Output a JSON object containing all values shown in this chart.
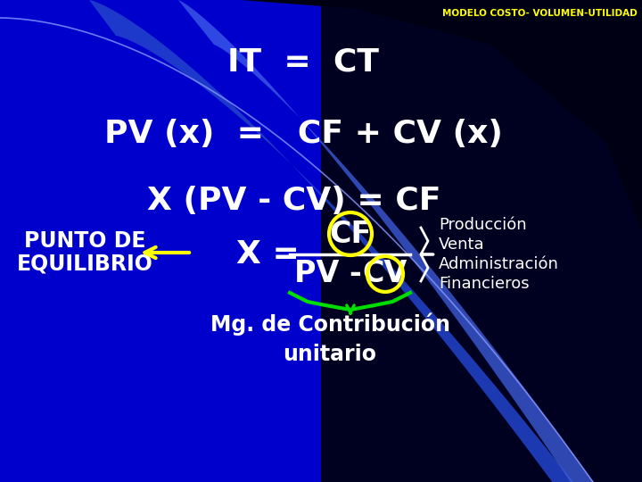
{
  "title": "MODELO COSTO- VOLUMEN-UTILIDAD",
  "title_color": "#FFFF00",
  "title_fontsize": 7.5,
  "line1": "IT  =  CT",
  "line2": "PV (x)  =   CF + CV (x)",
  "line3": "X (PV - CV) = CF",
  "formula_x_eq": "X =",
  "cf_text": "CF",
  "pv_dash": "PV -",
  "cv_text": "CV",
  "punto_de": "PUNTO DE",
  "equilibrio": "EQUILIBRIO",
  "mg_text": "Mg. de Contribución\nunitario",
  "right_brace_items": [
    "Producción",
    "Venta",
    "Administración",
    "Financieros"
  ],
  "white": "#FFFFFF",
  "yellow": "#FFFF00",
  "green": "#00DD00",
  "bg_blue": "#0000CC",
  "dark_bg": "#000010",
  "band1_color": "#2244DD",
  "band2_color": "#3366FF",
  "main_fontsize": 26,
  "formula_fontsize": 24,
  "label_fontsize": 17,
  "mg_fontsize": 17,
  "brace_fontsize": 13
}
